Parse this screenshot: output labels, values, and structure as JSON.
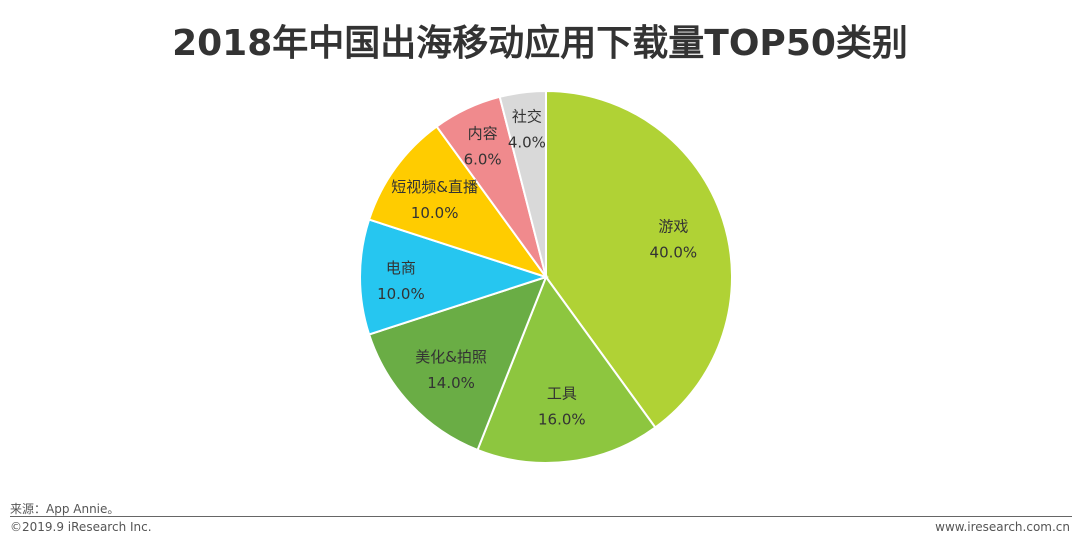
{
  "title": "2018年中国出海移动应用下载量TOP50类别",
  "chart_data": {
    "type": "pie",
    "title": "2018年中国出海移动应用下载量TOP50类别",
    "slices": [
      {
        "label": "游戏",
        "value": 40.0,
        "value_label": "40.0%",
        "color": "#b0d235"
      },
      {
        "label": "工具",
        "value": 16.0,
        "value_label": "16.0%",
        "color": "#8dc63f"
      },
      {
        "label": "美化&拍照",
        "value": 14.0,
        "value_label": "14.0%",
        "color": "#6aad45"
      },
      {
        "label": "电商",
        "value": 10.0,
        "value_label": "10.0%",
        "color": "#26c6f0"
      },
      {
        "label": "短视频&直播",
        "value": 10.0,
        "value_label": "10.0%",
        "color": "#ffcc00"
      },
      {
        "label": "内容",
        "value": 6.0,
        "value_label": "6.0%",
        "color": "#f08a8d"
      },
      {
        "label": "社交",
        "value": 4.0,
        "value_label": "4.0%",
        "color": "#d9d9d9"
      }
    ],
    "start": "12 o'clock",
    "direction": "clockwise",
    "legend": "none"
  },
  "footer": {
    "source": "来源：App Annie。",
    "copyright": "©2019.9 iResearch Inc.",
    "site": "www.iresearch.com.cn"
  }
}
